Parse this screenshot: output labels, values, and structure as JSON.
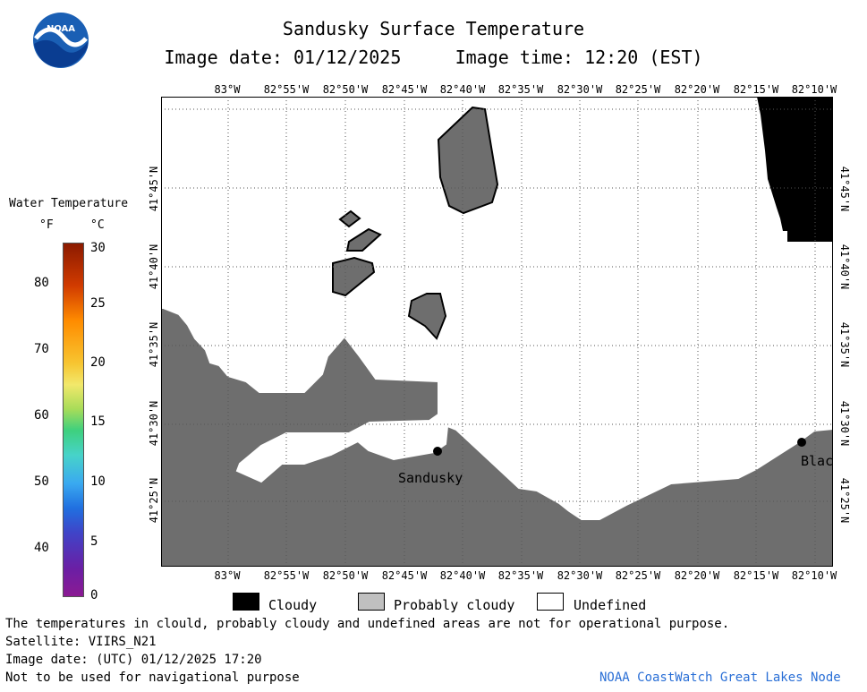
{
  "header": {
    "title": "Sandusky Surface Temperature",
    "subtitle": "Image date: 01/12/2025     Image time: 12:20 (EST)",
    "logo_text": "NOAA"
  },
  "colorbar": {
    "title": "Water Temperature",
    "unit_f": "°F",
    "unit_c": "°C",
    "f_ticks": [
      "80",
      "70",
      "60",
      "50",
      "40"
    ],
    "c_ticks": [
      "30",
      "25",
      "20",
      "15",
      "10",
      "5",
      "0"
    ]
  },
  "map": {
    "lon_labels": [
      "83°W",
      "82°55'W",
      "82°50'W",
      "82°45'W",
      "82°40'W",
      "82°35'W",
      "82°30'W",
      "82°25'W",
      "82°20'W",
      "82°15'W",
      "82°10'W"
    ],
    "lat_labels": [
      "41°45'N",
      "41°40'N",
      "41°35'N",
      "41°30'N",
      "41°25'N"
    ],
    "places": {
      "sandusky": "Sandusky",
      "blac": "Blac"
    },
    "colors": {
      "land": "#6e6e6e",
      "cloud": "#000000",
      "water_undefined": "#ffffff"
    }
  },
  "legend": {
    "cloudy": "Cloudy",
    "probably_cloudy": "Probably cloudy",
    "undefined": "Undefined"
  },
  "footer": {
    "disclaimer": "The temperatures in clould, probably cloudy and undefined areas are not for operational purpose.",
    "satellite": "Satellite: VIIRS_N21",
    "utc_date": "Image date: (UTC) 01/12/2025  17:20",
    "nav_warning": "Not to be used for navigational purpose",
    "credit": "NOAA CoastWatch Great Lakes Node"
  }
}
